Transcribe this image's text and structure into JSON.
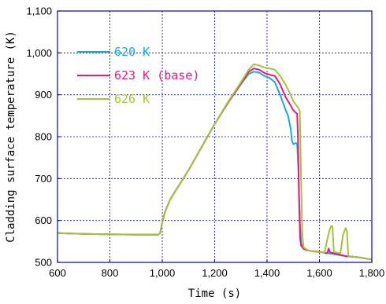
{
  "chart_data": {
    "type": "line",
    "xlabel": "Time (s)",
    "ylabel": "Cladding surface temperature (K)",
    "xlim": [
      600,
      1800
    ],
    "ylim": [
      500,
      1100
    ],
    "xticks": [
      600,
      800,
      1000,
      1200,
      1400,
      1600,
      1800
    ],
    "xtick_labels": [
      "600",
      "800",
      "1,000",
      "1,200",
      "1,400",
      "1,600",
      "1,800"
    ],
    "yticks": [
      500,
      600,
      700,
      800,
      900,
      1000,
      1100
    ],
    "ytick_labels": [
      "500",
      "600",
      "700",
      "800",
      "900",
      "1,000",
      "1,100"
    ],
    "grid": true,
    "legend_position": "top-left",
    "series": [
      {
        "name": "620 K",
        "color": "#19a9e0",
        "points": [
          [
            600,
            570
          ],
          [
            700,
            568
          ],
          [
            800,
            567
          ],
          [
            900,
            566
          ],
          [
            985,
            566
          ],
          [
            992,
            570
          ],
          [
            1000,
            595
          ],
          [
            1010,
            620
          ],
          [
            1030,
            650
          ],
          [
            1050,
            670
          ],
          [
            1100,
            720
          ],
          [
            1150,
            775
          ],
          [
            1200,
            830
          ],
          [
            1250,
            880
          ],
          [
            1300,
            925
          ],
          [
            1330,
            950
          ],
          [
            1350,
            955
          ],
          [
            1370,
            953
          ],
          [
            1390,
            945
          ],
          [
            1410,
            940
          ],
          [
            1430,
            930
          ],
          [
            1450,
            900
          ],
          [
            1470,
            865
          ],
          [
            1480,
            850
          ],
          [
            1490,
            820
          ],
          [
            1495,
            790
          ],
          [
            1500,
            782
          ],
          [
            1510,
            785
          ],
          [
            1515,
            783
          ],
          [
            1520,
            720
          ],
          [
            1525,
            600
          ],
          [
            1530,
            545
          ],
          [
            1540,
            532
          ],
          [
            1560,
            528
          ],
          [
            1600,
            525
          ],
          [
            1650,
            520
          ],
          [
            1700,
            515
          ],
          [
            1750,
            512
          ],
          [
            1800,
            507
          ]
        ]
      },
      {
        "name": "623 K (base)",
        "color": "#e6197f",
        "points": [
          [
            600,
            570
          ],
          [
            700,
            568
          ],
          [
            800,
            567
          ],
          [
            900,
            566
          ],
          [
            985,
            566
          ],
          [
            992,
            570
          ],
          [
            1000,
            595
          ],
          [
            1010,
            620
          ],
          [
            1030,
            650
          ],
          [
            1050,
            670
          ],
          [
            1100,
            720
          ],
          [
            1150,
            775
          ],
          [
            1200,
            830
          ],
          [
            1250,
            880
          ],
          [
            1300,
            927
          ],
          [
            1330,
            955
          ],
          [
            1350,
            963
          ],
          [
            1370,
            960
          ],
          [
            1390,
            952
          ],
          [
            1410,
            948
          ],
          [
            1430,
            945
          ],
          [
            1450,
            925
          ],
          [
            1470,
            895
          ],
          [
            1490,
            875
          ],
          [
            1500,
            863
          ],
          [
            1510,
            857
          ],
          [
            1515,
            855
          ],
          [
            1518,
            800
          ],
          [
            1522,
            650
          ],
          [
            1526,
            560
          ],
          [
            1530,
            540
          ],
          [
            1540,
            532
          ],
          [
            1560,
            528
          ],
          [
            1600,
            525
          ],
          [
            1630,
            522
          ],
          [
            1635,
            533
          ],
          [
            1640,
            524
          ],
          [
            1700,
            515
          ],
          [
            1750,
            512
          ],
          [
            1800,
            507
          ]
        ]
      },
      {
        "name": "626 K",
        "color": "#a2c43a",
        "points": [
          [
            600,
            570
          ],
          [
            700,
            568
          ],
          [
            800,
            567
          ],
          [
            900,
            566
          ],
          [
            985,
            566
          ],
          [
            992,
            570
          ],
          [
            1000,
            595
          ],
          [
            1010,
            620
          ],
          [
            1030,
            650
          ],
          [
            1050,
            670
          ],
          [
            1100,
            720
          ],
          [
            1150,
            775
          ],
          [
            1200,
            830
          ],
          [
            1250,
            882
          ],
          [
            1300,
            930
          ],
          [
            1330,
            960
          ],
          [
            1350,
            973
          ],
          [
            1370,
            970
          ],
          [
            1390,
            965
          ],
          [
            1410,
            963
          ],
          [
            1430,
            960
          ],
          [
            1450,
            945
          ],
          [
            1470,
            925
          ],
          [
            1490,
            900
          ],
          [
            1500,
            885
          ],
          [
            1515,
            872
          ],
          [
            1520,
            868
          ],
          [
            1525,
            860
          ],
          [
            1530,
            700
          ],
          [
            1535,
            560
          ],
          [
            1540,
            535
          ],
          [
            1560,
            528
          ],
          [
            1600,
            524
          ],
          [
            1620,
            524
          ],
          [
            1630,
            555
          ],
          [
            1640,
            580
          ],
          [
            1645,
            587
          ],
          [
            1650,
            585
          ],
          [
            1655,
            525
          ],
          [
            1680,
            522
          ],
          [
            1690,
            565
          ],
          [
            1700,
            582
          ],
          [
            1705,
            575
          ],
          [
            1710,
            515
          ],
          [
            1750,
            512
          ],
          [
            1800,
            507
          ]
        ]
      }
    ]
  }
}
